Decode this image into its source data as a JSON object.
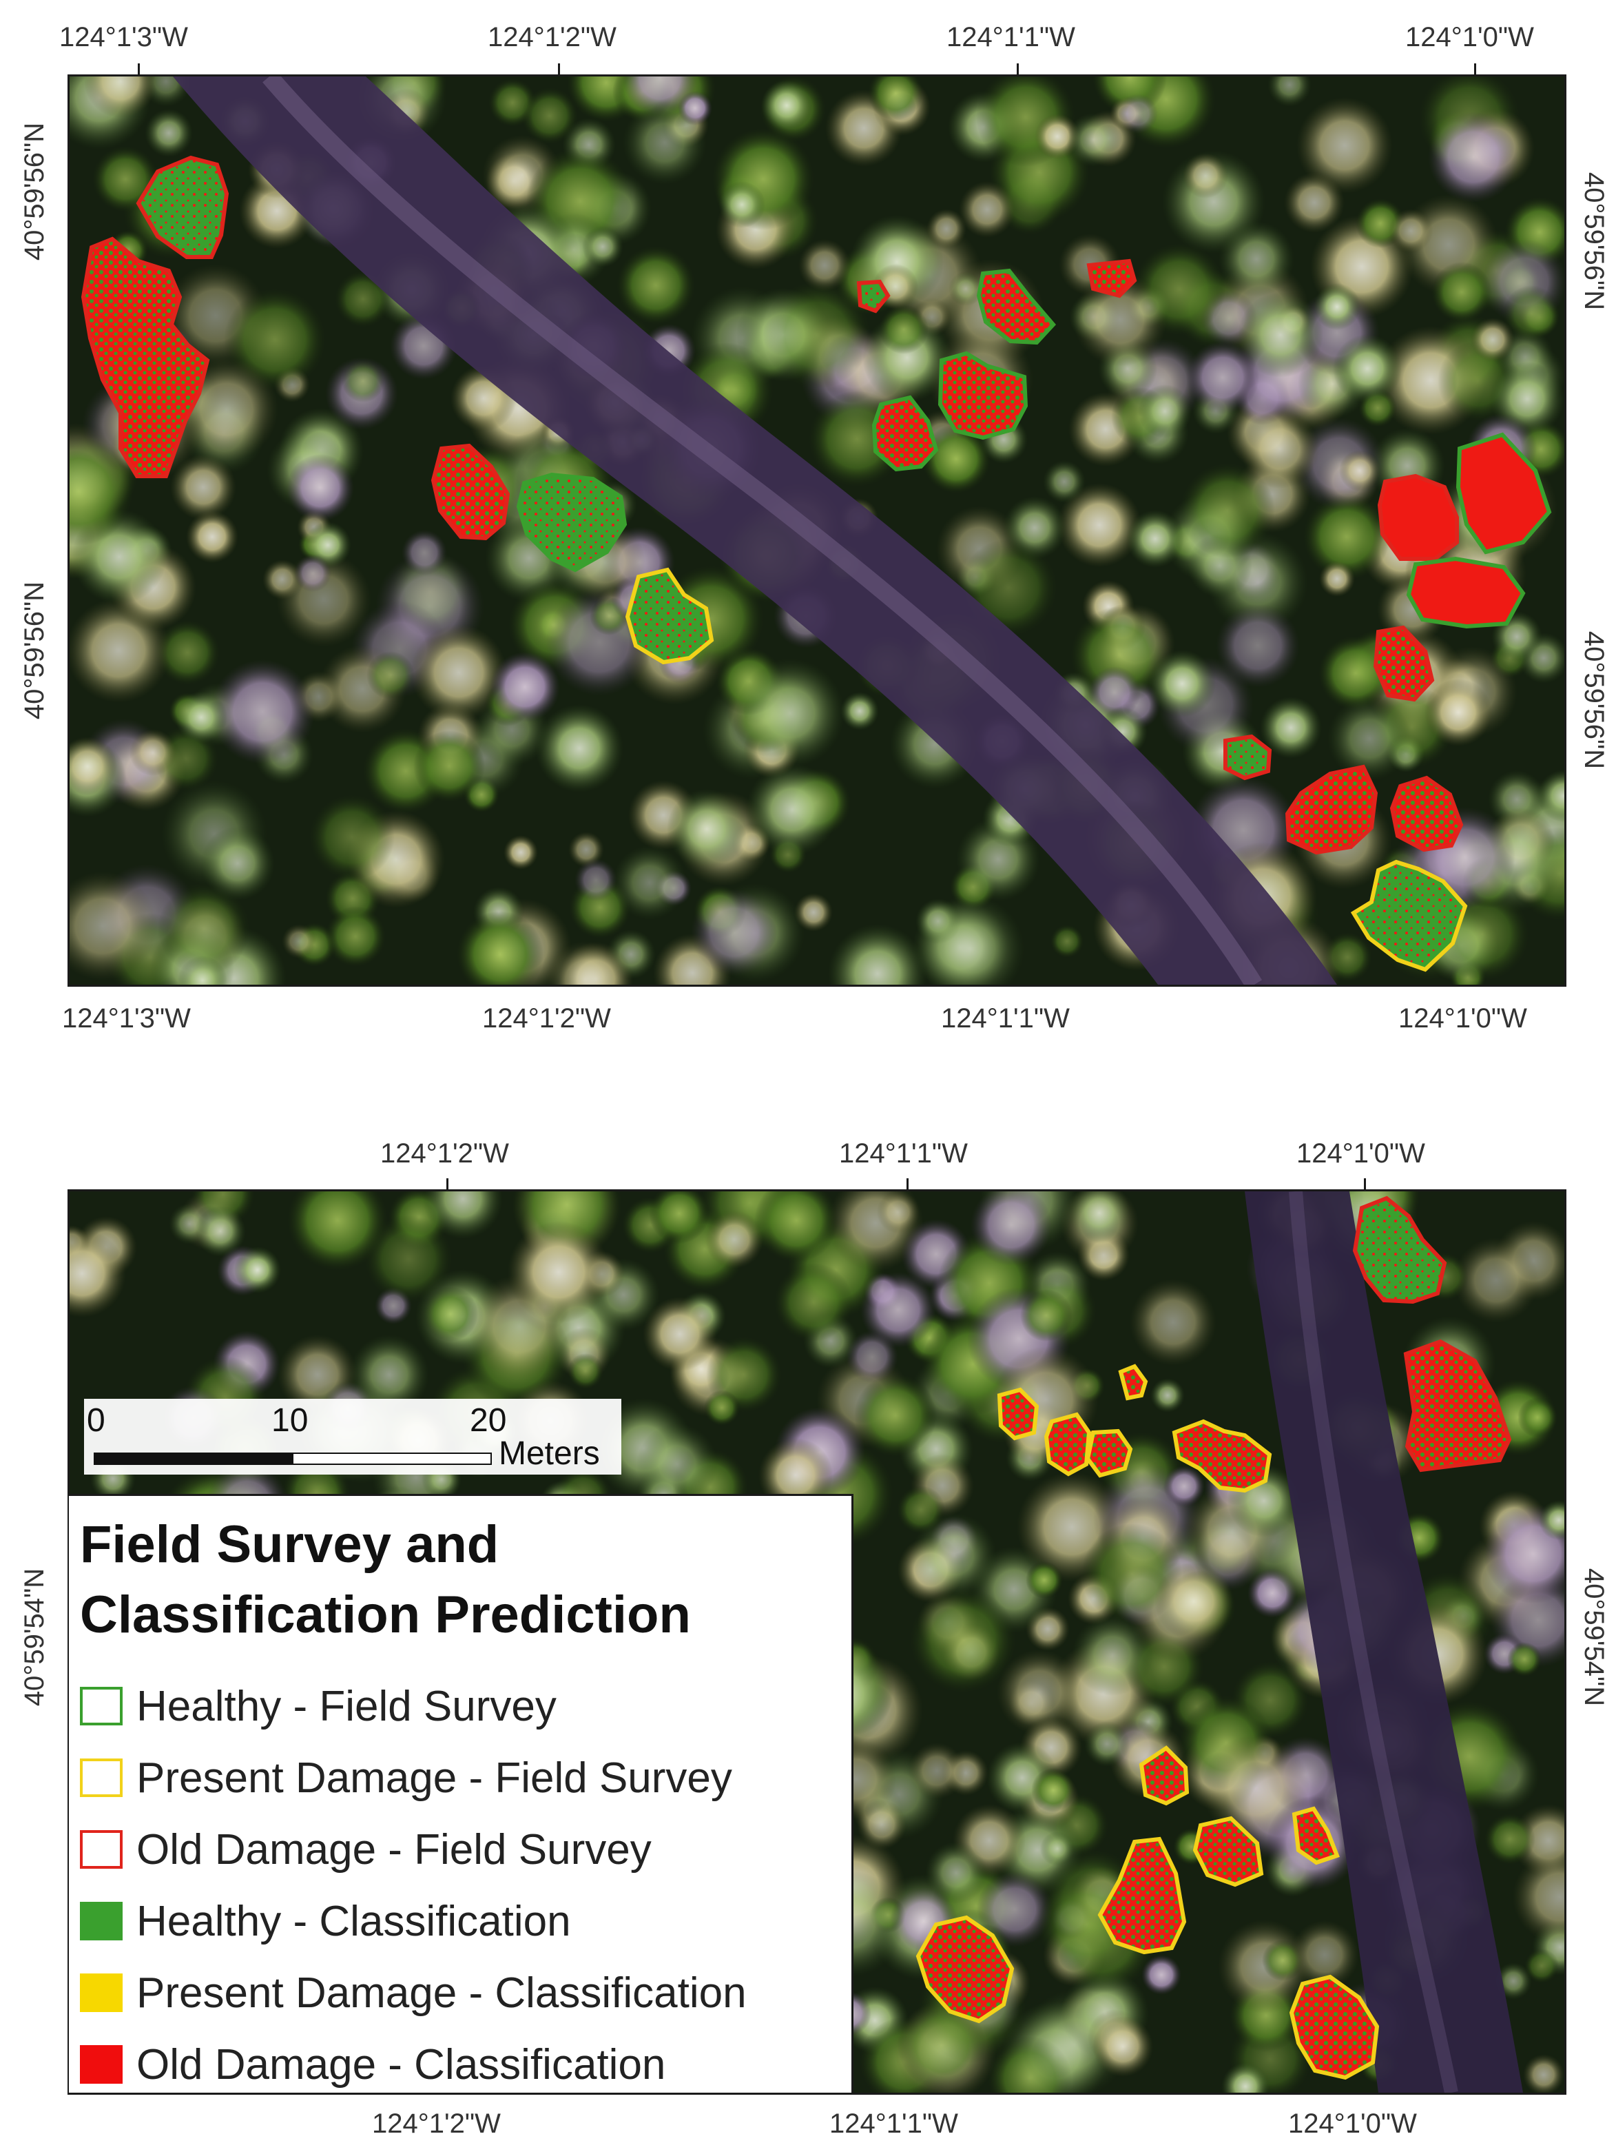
{
  "top_map": {
    "top_longitudes": [
      "124°1'3\"W",
      "124°1'2\"W",
      "124°1'1\"W",
      "124°1'0\"W"
    ],
    "bottom_longitudes": [
      "124°1'3\"W",
      "124°1'2\"W",
      "124°1'1\"W",
      "124°1'0\"W"
    ],
    "left_latitudes": [
      "40°59'56\"N",
      "40°59'56\"N"
    ],
    "right_latitudes": [
      "40°59'56\"N",
      "40°59'56\"N"
    ]
  },
  "bottom_map": {
    "top_longitudes": [
      "124°1'2\"W",
      "124°1'1\"W",
      "124°1'0\"W"
    ],
    "bottom_longitudes": [
      "124°1'2\"W",
      "124°1'1\"W",
      "124°1'0\"W"
    ],
    "left_latitude": "40°59'54\"N",
    "right_latitude": "40°59'54\"N"
  },
  "scale_bar": {
    "labels": [
      "0",
      "10",
      "20"
    ],
    "unit": "Meters"
  },
  "legend": {
    "title_line1": "Field Survey and",
    "title_line2": "Classification Prediction",
    "items": [
      {
        "label": "Healthy - Field Survey",
        "type": "outline",
        "color": "#3aa02e"
      },
      {
        "label": "Present Damage - Field Survey",
        "type": "outline",
        "color": "#f2d21a"
      },
      {
        "label": "Old Damage - Field Survey",
        "type": "outline",
        "color": "#e0241c"
      },
      {
        "label": "Healthy - Classification",
        "type": "fill",
        "color": "#3aa02e"
      },
      {
        "label": "Present Damage - Classification",
        "type": "fill",
        "color": "#f7d800"
      },
      {
        "label": "Old Damage - Classification",
        "type": "fill",
        "color": "#f00d0d"
      }
    ]
  }
}
